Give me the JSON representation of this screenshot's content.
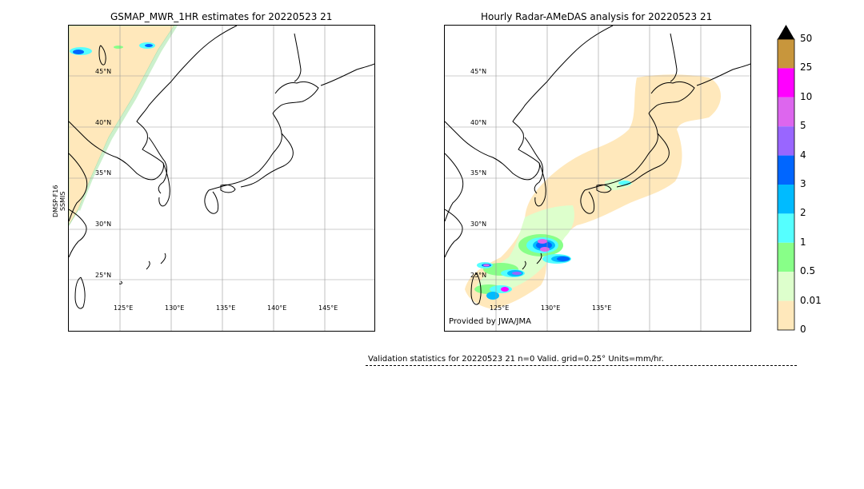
{
  "left_panel": {
    "title": "GSMAP_MWR_1HR estimates for 20220523 21",
    "satellite_label_1": "DMSP-F16",
    "satellite_label_2": "SSMIS",
    "lat_labels": [
      "45°N",
      "40°N",
      "35°N",
      "30°N",
      "25°N"
    ],
    "lon_labels": [
      "125°E",
      "130°E",
      "135°E",
      "140°E",
      "145°E"
    ]
  },
  "right_panel": {
    "title": "Hourly Radar-AMeDAS analysis for 20220523 21",
    "lat_labels": [
      "45°N",
      "40°N",
      "35°N",
      "30°N",
      "25°N"
    ],
    "lon_labels": [
      "125°E",
      "130°E",
      "135°E"
    ],
    "credit": "Provided by JWA/JMA"
  },
  "colorbar": {
    "labels": [
      "50",
      "25",
      "10",
      "5",
      "4",
      "3",
      "2",
      "1",
      "0.5",
      "0.01",
      "0"
    ],
    "colors": [
      "#c8963c",
      "#ff00ff",
      "#dd66ee",
      "#9966ff",
      "#0066ff",
      "#00bbff",
      "#55ffff",
      "#88ff88",
      "#ddffcc",
      "#ffe8bb"
    ],
    "extend_color": "#000000"
  },
  "validation": {
    "text": "Validation statistics for 20220523 21  n=0 Valid. grid=0.25° Units=mm/hr."
  },
  "colors": {
    "no_rain_area": "#ffe8bb",
    "coast": "#000000",
    "grid": "#999999"
  }
}
